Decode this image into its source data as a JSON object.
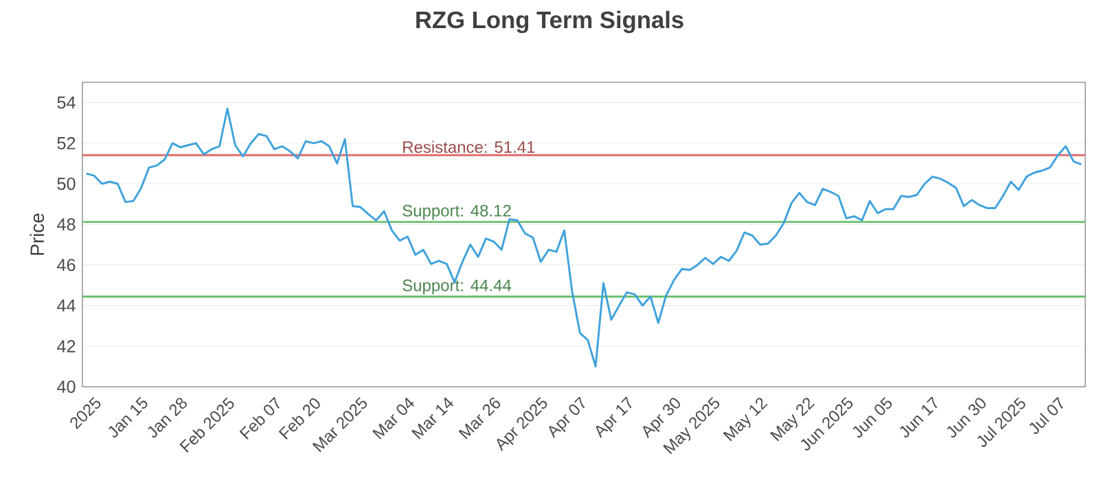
{
  "chart_data": {
    "type": "line",
    "title": "RZG Long Term Signals",
    "ylabel": "Price",
    "categories": [
      null,
      "2025",
      null,
      null,
      null,
      null,
      null,
      "Jan 15",
      null,
      null,
      null,
      null,
      "Jan 28",
      null,
      null,
      null,
      null,
      null,
      "Feb 2025",
      null,
      null,
      null,
      null,
      null,
      "Feb 07",
      null,
      null,
      null,
      null,
      "Feb 20",
      null,
      null,
      null,
      null,
      null,
      "Mar 2025",
      null,
      null,
      null,
      null,
      null,
      "Mar 04",
      null,
      null,
      null,
      null,
      "Mar 14",
      null,
      null,
      null,
      null,
      null,
      "Mar 26",
      null,
      null,
      null,
      null,
      null,
      "Apr 2025",
      null,
      null,
      null,
      null,
      "Apr 07",
      null,
      null,
      null,
      null,
      null,
      "Apr 17",
      null,
      null,
      null,
      null,
      null,
      "Apr 30",
      null,
      null,
      null,
      null,
      "May 2025",
      null,
      null,
      null,
      null,
      null,
      "May 12",
      null,
      null,
      null,
      null,
      null,
      "May 22",
      null,
      null,
      null,
      null,
      "Jun 2025",
      null,
      null,
      null,
      null,
      "Jun 05",
      null,
      null,
      null,
      null,
      null,
      "Jun 17",
      null,
      null,
      null,
      null,
      null,
      "Jun 30",
      null,
      null,
      null,
      null,
      "Jul 2025",
      null,
      null,
      null,
      null,
      "Jul 07",
      null,
      null,
      null
    ],
    "series": [
      {
        "color": "#3fa2dc",
        "values": [
          50.5,
          50.4,
          50.0,
          50.1,
          50.0,
          49.1,
          49.15,
          49.8,
          50.8,
          50.9,
          51.2,
          52.0,
          51.8,
          51.9,
          52.0,
          51.45,
          51.7,
          51.85,
          53.7,
          51.9,
          51.35,
          52.0,
          52.45,
          52.35,
          51.7,
          51.85,
          51.6,
          51.25,
          52.1,
          52.0,
          52.1,
          51.85,
          51.0,
          52.2,
          48.9,
          48.85,
          48.5,
          48.2,
          48.65,
          47.7,
          47.2,
          47.4,
          46.5,
          46.75,
          46.05,
          46.2,
          46.05,
          45.15,
          46.15,
          47.0,
          46.4,
          47.3,
          47.15,
          46.75,
          48.25,
          48.2,
          47.55,
          47.35,
          46.15,
          46.75,
          46.65,
          47.7,
          44.7,
          42.65,
          42.3,
          41.0,
          45.1,
          43.3,
          44.0,
          44.65,
          44.55,
          44.0,
          44.45,
          43.15,
          44.5,
          45.25,
          45.8,
          45.75,
          46.0,
          46.35,
          46.05,
          46.4,
          46.2,
          46.7,
          47.6,
          47.45,
          47.0,
          47.05,
          47.45,
          48.05,
          49.05,
          49.55,
          49.1,
          48.95,
          49.75,
          49.6,
          49.4,
          48.3,
          48.4,
          48.2,
          49.15,
          48.55,
          48.75,
          48.75,
          49.4,
          49.35,
          49.45,
          50.0,
          50.35,
          50.25,
          50.05,
          49.8,
          48.9,
          49.2,
          48.95,
          48.8,
          48.8,
          49.4,
          50.1,
          49.7,
          50.35,
          50.55,
          50.65,
          50.8,
          51.4,
          51.85,
          51.1,
          50.95
        ]
      }
    ],
    "ylim": [
      40,
      55
    ],
    "yticks": [
      40,
      42,
      44,
      46,
      48,
      50,
      52,
      54
    ],
    "grid": "y",
    "marker": "none",
    "line_style": "solid",
    "ref_lines": [
      {
        "axis": "y",
        "value": 51.41,
        "label": "Resistance: 51.41",
        "color": "#e06c6c"
      },
      {
        "axis": "y",
        "value": 48.12,
        "label": "Support: 48.12",
        "color": "#6cc070"
      },
      {
        "axis": "y",
        "value": 44.44,
        "label": "Support: 44.44",
        "color": "#6cc070"
      }
    ]
  }
}
